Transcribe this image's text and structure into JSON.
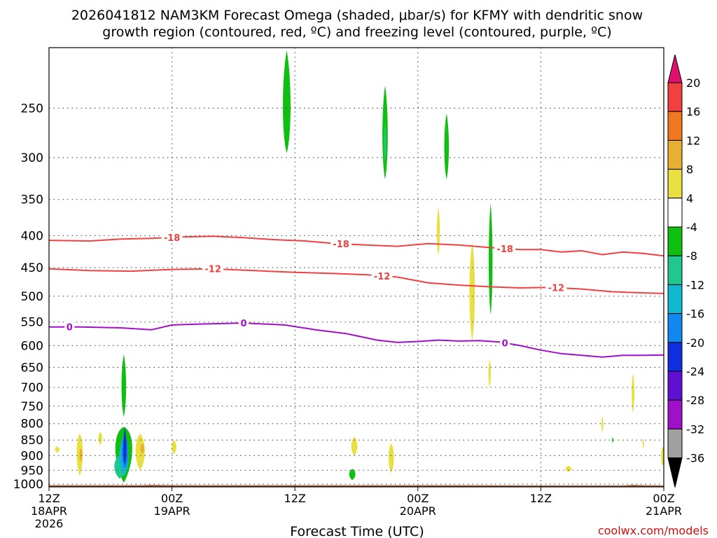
{
  "chart_data": {
    "type": "area",
    "title": "2026041812 NAM3KM Forecast Omega (shaded, μbar/s) for KFMY with dendritic snow",
    "subtitle": "growth region (contoured, red, ºC) and freezing level (contoured, purple, ºC)",
    "xlabel": "Forecast Time (UTC)",
    "ylabel": "",
    "credit": "coolwx.com/models",
    "x_unit": "hours since 2026-04-18 12Z",
    "xlim": [
      0,
      60
    ],
    "ylim": [
      1010,
      200
    ],
    "y_scale": "log",
    "x_ticks": [
      {
        "x": 0,
        "lines": [
          "12Z",
          "18APR",
          "2026"
        ]
      },
      {
        "x": 12,
        "lines": [
          "00Z",
          "19APR"
        ]
      },
      {
        "x": 24,
        "lines": [
          "12Z"
        ]
      },
      {
        "x": 36,
        "lines": [
          "00Z",
          "20APR"
        ]
      },
      {
        "x": 48,
        "lines": [
          "12Z"
        ]
      },
      {
        "x": 60,
        "lines": [
          "00Z",
          "21APR"
        ]
      }
    ],
    "y_ticks": [
      250,
      300,
      350,
      400,
      450,
      500,
      550,
      600,
      650,
      700,
      750,
      800,
      850,
      900,
      950,
      1000
    ],
    "grid": "dotted",
    "colorbar": {
      "unit": "μbar/s",
      "labels": [
        "20",
        "16",
        "12",
        "8",
        "4",
        "-4",
        "-8",
        "-12",
        "-16",
        "-20",
        "-24",
        "-28",
        "-32",
        "-36"
      ],
      "colors": [
        "#e0106e",
        "#f04040",
        "#f07820",
        "#e8b030",
        "#e8e040",
        "#ffffff",
        "#10c010",
        "#20c890",
        "#10b8d0",
        "#1088f0",
        "#1030e0",
        "#6010d0",
        "#a010c8",
        "#a0a0a0",
        "#000000"
      ]
    },
    "contours": [
      {
        "level": "-18",
        "color": "#f04040",
        "x": [
          0,
          4,
          7,
          10,
          13,
          16,
          19,
          22,
          25,
          28,
          31,
          34,
          37,
          40,
          43,
          46,
          48,
          50,
          52,
          54,
          56,
          58,
          60
        ],
        "y": [
          407,
          408,
          405,
          404,
          402,
          401,
          403,
          406,
          408,
          412,
          414,
          416,
          412,
          414,
          418,
          421,
          421,
          425,
          423,
          429,
          425,
          427,
          431
        ],
        "labels": [
          {
            "x": 12,
            "text": "-18"
          },
          {
            "x": 28.5,
            "text": "-18"
          },
          {
            "x": 44.5,
            "text": "-18"
          }
        ]
      },
      {
        "level": "-12",
        "color": "#f04040",
        "x": [
          0,
          4,
          8,
          12,
          16,
          20,
          24,
          28,
          31,
          34,
          37,
          40,
          43,
          46,
          49,
          52,
          55,
          58,
          60
        ],
        "y": [
          452,
          455,
          456,
          453,
          452,
          455,
          458,
          460,
          462,
          466,
          476,
          480,
          483,
          485,
          484,
          487,
          492,
          494,
          495
        ],
        "labels": [
          {
            "x": 16,
            "text": "-12"
          },
          {
            "x": 32.5,
            "text": "-12"
          },
          {
            "x": 49.5,
            "text": "-12"
          }
        ]
      },
      {
        "level": "0",
        "color": "#a010c8",
        "x": [
          0,
          3,
          7,
          10,
          12,
          15,
          19,
          23,
          26,
          29,
          32,
          34,
          36,
          38,
          40,
          42,
          44,
          46,
          48,
          50,
          52,
          54,
          56,
          58,
          60
        ],
        "y": [
          560,
          560,
          562,
          566,
          556,
          554,
          552,
          556,
          566,
          574,
          588,
          593,
          591,
          588,
          590,
          589,
          592,
          600,
          610,
          618,
          622,
          626,
          622,
          622,
          621
        ],
        "labels": [
          {
            "x": 2,
            "text": "0"
          },
          {
            "x": 19,
            "text": "0"
          },
          {
            "x": 44.5,
            "text": "0"
          }
        ]
      }
    ],
    "omega_blobs": [
      {
        "x": 0.8,
        "p": 880,
        "w": 0.6,
        "lo": 870,
        "hi": 890,
        "color": "#e8e040"
      },
      {
        "x": 3.0,
        "p": 878,
        "w": 0.8,
        "lo": 830,
        "hi": 970,
        "color": "#e8e040"
      },
      {
        "x": 3.1,
        "p": 895,
        "w": 0.35,
        "lo": 875,
        "hi": 920,
        "color": "#e8b030"
      },
      {
        "x": 5.0,
        "p": 845,
        "w": 0.5,
        "lo": 825,
        "hi": 865,
        "color": "#e8e040"
      },
      {
        "x": 7.3,
        "p": 840,
        "w": 2.2,
        "lo": 810,
        "hi": 995,
        "color": "#10c010"
      },
      {
        "x": 6.9,
        "p": 930,
        "w": 1.4,
        "lo": 900,
        "hi": 980,
        "color": "#20c890"
      },
      {
        "x": 7.3,
        "p": 920,
        "w": 1.2,
        "lo": 840,
        "hi": 970,
        "color": "#10b8d0"
      },
      {
        "x": 7.4,
        "p": 905,
        "w": 0.8,
        "lo": 830,
        "hi": 945,
        "color": "#1088f0"
      },
      {
        "x": 7.4,
        "p": 900,
        "w": 0.4,
        "lo": 810,
        "hi": 930,
        "color": "#1030e0"
      },
      {
        "x": 7.3,
        "p": 700,
        "w": 0.6,
        "lo": 620,
        "hi": 780,
        "color": "#10c010"
      },
      {
        "x": 8.9,
        "p": 880,
        "w": 1.2,
        "lo": 830,
        "hi": 950,
        "color": "#e8e040"
      },
      {
        "x": 9.1,
        "p": 875,
        "w": 0.5,
        "lo": 860,
        "hi": 895,
        "color": "#e8b030"
      },
      {
        "x": 12.2,
        "p": 870,
        "w": 0.6,
        "lo": 850,
        "hi": 895,
        "color": "#e8e040"
      },
      {
        "x": 23.2,
        "p": 255,
        "w": 1.0,
        "lo": 202,
        "hi": 295,
        "color": "#10c010"
      },
      {
        "x": 29.8,
        "p": 870,
        "w": 0.8,
        "lo": 840,
        "hi": 900,
        "color": "#e8e040"
      },
      {
        "x": 29.6,
        "p": 962,
        "w": 0.8,
        "lo": 945,
        "hi": 985,
        "color": "#10c010"
      },
      {
        "x": 32.8,
        "p": 280,
        "w": 0.7,
        "lo": 230,
        "hi": 325,
        "color": "#10c010"
      },
      {
        "x": 32.8,
        "p": 285,
        "w": 0.25,
        "lo": 265,
        "hi": 305,
        "color": "#20c890"
      },
      {
        "x": 33.4,
        "p": 900,
        "w": 0.7,
        "lo": 860,
        "hi": 960,
        "color": "#e8e040"
      },
      {
        "x": 38.8,
        "p": 290,
        "w": 0.6,
        "lo": 255,
        "hi": 325,
        "color": "#10c010"
      },
      {
        "x": 38.0,
        "p": 395,
        "w": 0.4,
        "lo": 360,
        "hi": 430,
        "color": "#e8e040"
      },
      {
        "x": 41.3,
        "p": 490,
        "w": 0.7,
        "lo": 410,
        "hi": 590,
        "color": "#e8e040"
      },
      {
        "x": 43.1,
        "p": 450,
        "w": 0.5,
        "lo": 355,
        "hi": 535,
        "color": "#10c010"
      },
      {
        "x": 43.0,
        "p": 665,
        "w": 0.3,
        "lo": 630,
        "hi": 700,
        "color": "#e8e040"
      },
      {
        "x": 50.7,
        "p": 945,
        "w": 0.8,
        "lo": 935,
        "hi": 955,
        "color": "#e8e040"
      },
      {
        "x": 54.0,
        "p": 800,
        "w": 0.25,
        "lo": 780,
        "hi": 825,
        "color": "#e8e040"
      },
      {
        "x": 55.0,
        "p": 850,
        "w": 0.15,
        "lo": 840,
        "hi": 860,
        "color": "#10c010"
      },
      {
        "x": 57.0,
        "p": 710,
        "w": 0.35,
        "lo": 665,
        "hi": 770,
        "color": "#e8e040"
      },
      {
        "x": 58.0,
        "p": 860,
        "w": 0.2,
        "lo": 845,
        "hi": 875,
        "color": "#e8e040"
      },
      {
        "x": 59.9,
        "p": 900,
        "w": 0.4,
        "lo": 870,
        "hi": 935,
        "color": "#e8e040"
      }
    ],
    "terrain": {
      "color": "#a0522d",
      "x": [
        0,
        9,
        10,
        12,
        40,
        48,
        56,
        57,
        58,
        60
      ],
      "p": [
        1004,
        1004,
        1003,
        1004,
        1004,
        1005,
        1005,
        1003,
        1004,
        1005
      ]
    }
  }
}
